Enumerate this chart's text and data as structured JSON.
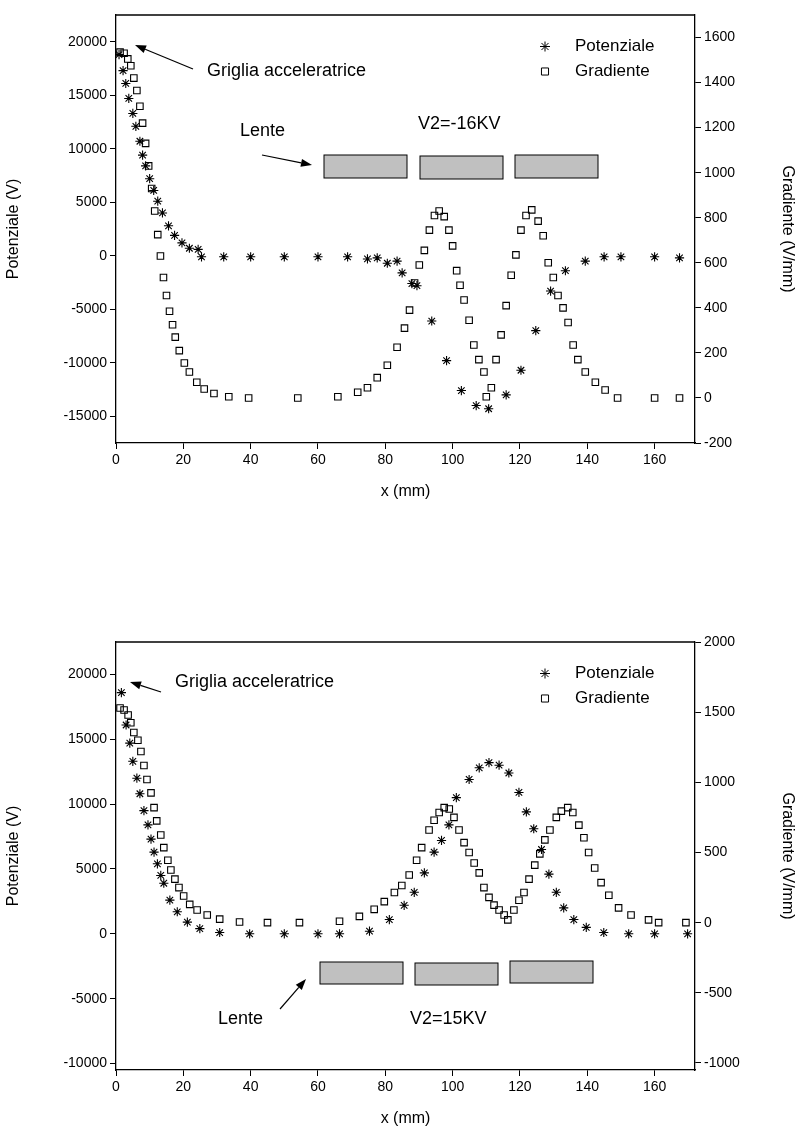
{
  "chart_data": [
    {
      "type": "scatter",
      "xlabel": "x (mm)",
      "ylabel": "Potenziale (V)",
      "y2label": "Gradiente (V/mm)",
      "xlim": [
        0,
        172
      ],
      "xticks": [
        0,
        20,
        40,
        60,
        80,
        100,
        120,
        140,
        160
      ],
      "ylim": [
        -17500,
        22500
      ],
      "yticks": [
        -15000,
        -10000,
        -5000,
        0,
        5000,
        10000,
        15000,
        20000
      ],
      "y2lim": [
        -200,
        1700
      ],
      "y2ticks": [
        -200,
        0,
        200,
        400,
        600,
        800,
        1000,
        1200,
        1400,
        1600
      ],
      "grid": false,
      "legend": "top right",
      "annotations": [
        "Griglia acceleratrice",
        "Lente",
        "V2=-16KV"
      ],
      "series": [
        {
          "name": "Potenziale",
          "type": "scatter",
          "marker": "cross",
          "color": "#000000",
          "x": [
            0.9,
            2.1,
            2.9,
            3.8,
            5,
            5.9,
            7.1,
            7.9,
            8.8,
            10,
            11.2,
            12.4,
            13.8,
            15.6,
            17.4,
            19.6,
            21.8,
            24.4,
            25.4,
            32,
            40,
            50,
            60,
            68.8,
            74.7,
            77.6,
            80.6,
            83.5,
            85,
            87.9,
            89.4,
            93.8,
            98.2,
            102.6,
            107,
            110.7,
            115.9,
            120.3,
            124.7,
            129.1,
            133.5,
            139.4,
            145,
            150,
            160,
            167.4
          ],
          "values": [
            18800,
            17300,
            16100,
            14700,
            13300,
            12100,
            10700,
            9400,
            8400,
            7200,
            6100,
            5100,
            4000,
            2800,
            1900,
            1200,
            700,
            600,
            -100,
            -100,
            -100,
            -100,
            -100,
            -100,
            -300,
            -200,
            -700,
            -500,
            -1600,
            -2600,
            -2800,
            -6100,
            -9800,
            -12600,
            -14000,
            -14300,
            -13000,
            -10700,
            -7000,
            -3300,
            -1400,
            -500,
            -100,
            -100,
            -100,
            -200
          ]
        },
        {
          "name": "Gradiente",
          "type": "scatter",
          "marker": "square",
          "color": "#000000",
          "axis": "y2",
          "x": [
            1.2,
            2.4,
            3.5,
            4.4,
            5.3,
            6.2,
            7.1,
            7.9,
            8.8,
            9.7,
            10.6,
            11.5,
            12.4,
            13.2,
            14.1,
            15,
            15.9,
            16.8,
            17.6,
            18.8,
            20.3,
            21.8,
            24,
            26.2,
            29.1,
            33.5,
            39.4,
            54,
            65.9,
            71.8,
            74.7,
            77.6,
            80.6,
            83.5,
            85.7,
            87.2,
            88.7,
            90.1,
            91.6,
            93.1,
            94.6,
            96,
            97.5,
            98.9,
            100,
            101.2,
            102.2,
            103.4,
            104.9,
            106.3,
            107.8,
            109.3,
            110,
            111.5,
            112.9,
            114.4,
            115.9,
            117.4,
            118.8,
            120.3,
            121.8,
            123.5,
            125.4,
            126.9,
            128.4,
            129.9,
            131.3,
            132.8,
            134.3,
            135.8,
            137.2,
            139.4,
            142.4,
            145.3,
            149,
            160,
            167.4
          ],
          "values": [
            1535,
            1530,
            1505,
            1475,
            1420,
            1365,
            1295,
            1220,
            1130,
            1030,
            930,
            830,
            725,
            630,
            535,
            455,
            385,
            325,
            270,
            210,
            155,
            115,
            70,
            40,
            20,
            5,
            0,
            0,
            5,
            25,
            45,
            90,
            145,
            225,
            310,
            390,
            510,
            590,
            655,
            745,
            810,
            830,
            805,
            745,
            675,
            565,
            500,
            435,
            345,
            235,
            170,
            115,
            5,
            45,
            170,
            280,
            410,
            545,
            635,
            745,
            810,
            835,
            785,
            720,
            600,
            535,
            455,
            400,
            335,
            235,
            170,
            115,
            70,
            35,
            0,
            0,
            0
          ]
        }
      ]
    },
    {
      "type": "scatter",
      "xlabel": "x (mm)",
      "ylabel": "Potenziale (V)",
      "y2label": "Gradiente (V/mm)",
      "xlim": [
        0,
        172
      ],
      "xticks": [
        0,
        20,
        40,
        60,
        80,
        100,
        120,
        140,
        160
      ],
      "ylim": [
        -10500,
        22500
      ],
      "yticks": [
        -10000,
        -5000,
        0,
        5000,
        10000,
        15000,
        20000
      ],
      "y2lim": [
        -1050,
        2000
      ],
      "y2ticks": [
        -1000,
        -500,
        0,
        500,
        1000,
        1500,
        2000
      ],
      "grid": false,
      "legend": "top right",
      "annotations": [
        "Griglia acceleratrice",
        "Lente",
        "V2=15KV"
      ],
      "series": [
        {
          "name": "Potenziale",
          "type": "scatter",
          "marker": "cross",
          "color": "#000000",
          "x": [
            1.6,
            3,
            4.1,
            5,
            6.2,
            7.1,
            8.3,
            9.5,
            10.4,
            11.3,
            12.3,
            13.3,
            14.2,
            16,
            18.2,
            21.2,
            24.9,
            30.8,
            39.7,
            50,
            60,
            66.4,
            75.3,
            81.2,
            85.6,
            88.6,
            91.6,
            94.5,
            96.7,
            98.9,
            101.1,
            104.9,
            107.9,
            110.8,
            113.8,
            116.7,
            119.7,
            121.9,
            124.1,
            126.4,
            128.6,
            130.8,
            133,
            136,
            139.7,
            144.9,
            152.3,
            160,
            169.8
          ],
          "values": [
            18600,
            16100,
            14700,
            13300,
            12000,
            10800,
            9500,
            8400,
            7300,
            6300,
            5400,
            4500,
            3900,
            2600,
            1700,
            900,
            400,
            100,
            0,
            0,
            0,
            0,
            200,
            1100,
            2200,
            3200,
            4700,
            6300,
            7200,
            8400,
            10500,
            11900,
            12800,
            13200,
            13000,
            12400,
            10900,
            9400,
            8100,
            6500,
            4600,
            3200,
            2000,
            1100,
            500,
            100,
            0,
            0,
            0
          ]
        },
        {
          "name": "Gradiente",
          "type": "scatter",
          "marker": "square",
          "color": "#000000",
          "axis": "y2",
          "x": [
            1.2,
            2.4,
            3.6,
            4.4,
            5.3,
            6.5,
            7.4,
            8.3,
            9.2,
            10.4,
            11.3,
            12.1,
            13.3,
            14.2,
            15.4,
            16.3,
            17.5,
            18.7,
            20.1,
            21.9,
            24.1,
            27.1,
            30.8,
            36.7,
            45,
            54.5,
            66.4,
            72.3,
            76.7,
            79.7,
            82.7,
            84.9,
            87.1,
            89.3,
            90.8,
            93,
            94.5,
            96,
            97.5,
            99,
            100.4,
            101.9,
            103.4,
            104.9,
            106.4,
            107.9,
            109.3,
            110.8,
            112.3,
            113.8,
            115.3,
            116.4,
            118.2,
            119.7,
            121.2,
            122.7,
            124.4,
            125.9,
            127.4,
            128.9,
            130.8,
            132.3,
            134.2,
            135.7,
            137.5,
            139,
            140.4,
            142.2,
            144.1,
            146.4,
            149.3,
            153,
            158.2,
            161.2,
            169.3
          ],
          "values": [
            1530,
            1515,
            1480,
            1425,
            1355,
            1300,
            1220,
            1120,
            1020,
            925,
            820,
            725,
            625,
            535,
            445,
            375,
            310,
            250,
            190,
            130,
            90,
            55,
            25,
            5,
            0,
            0,
            10,
            45,
            95,
            150,
            215,
            265,
            340,
            445,
            535,
            660,
            730,
            785,
            820,
            810,
            750,
            660,
            570,
            500,
            425,
            355,
            250,
            180,
            125,
            90,
            55,
            20,
            90,
            160,
            215,
            310,
            410,
            490,
            590,
            660,
            750,
            795,
            820,
            785,
            695,
            605,
            500,
            390,
            285,
            195,
            105,
            55,
            20,
            0,
            0
          ]
        }
      ]
    }
  ]
}
